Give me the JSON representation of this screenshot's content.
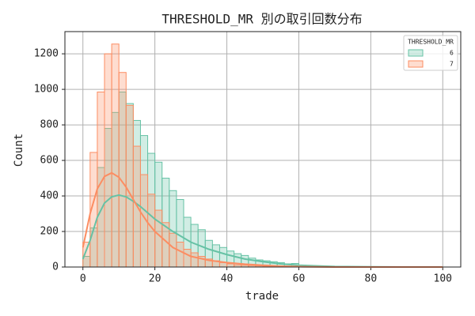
{
  "chart_data": {
    "type": "histogram",
    "title": "THRESHOLD_MR 別の取引回数分布",
    "x_label": "trade",
    "y_label": "Count",
    "legend_title": "THRESHOLD_MR",
    "legend_position": "upper right",
    "grid": true,
    "bins": [
      0,
      2,
      4,
      6,
      8,
      10,
      12,
      14,
      16,
      18,
      20,
      22,
      24,
      26,
      28,
      30,
      32,
      34,
      36,
      38,
      40,
      42,
      44,
      46,
      48,
      50,
      52,
      54,
      56,
      58,
      60,
      62,
      64
    ],
    "kde_x": [
      0,
      2,
      4,
      6,
      8,
      10,
      12,
      14,
      16,
      18,
      20,
      25,
      30,
      35,
      40,
      45,
      50,
      55,
      60,
      70,
      80,
      90,
      100
    ],
    "series": [
      {
        "name": "6",
        "color": "#66c2a5",
        "values": [
          60,
          220,
          560,
          780,
          870,
          985,
          920,
          825,
          740,
          640,
          590,
          500,
          430,
          380,
          280,
          240,
          210,
          150,
          125,
          110,
          90,
          75,
          65,
          50,
          40,
          35,
          30,
          25,
          18,
          20,
          10,
          5
        ],
        "kde": [
          45,
          150,
          280,
          360,
          395,
          405,
          395,
          370,
          340,
          305,
          270,
          200,
          140,
          100,
          70,
          45,
          30,
          18,
          10,
          3,
          1,
          0,
          0
        ]
      },
      {
        "name": "7",
        "color": "#fc8d62",
        "values": [
          140,
          645,
          985,
          1200,
          1255,
          1095,
          910,
          680,
          520,
          410,
          320,
          250,
          190,
          140,
          100,
          80,
          60,
          45,
          35,
          25,
          18,
          12,
          10,
          8,
          6,
          4,
          3,
          2,
          1,
          1,
          0,
          0
        ],
        "kde": [
          110,
          300,
          440,
          510,
          530,
          505,
          450,
          380,
          310,
          250,
          200,
          110,
          60,
          38,
          25,
          16,
          10,
          5,
          2,
          0,
          0,
          0,
          0
        ]
      }
    ],
    "xlim": [
      -5,
      105
    ],
    "xticks": [
      0,
      20,
      40,
      60,
      80,
      100
    ],
    "ylim": [
      0,
      1325
    ],
    "yticks": [
      0,
      200,
      400,
      600,
      800,
      1000,
      1200
    ]
  }
}
